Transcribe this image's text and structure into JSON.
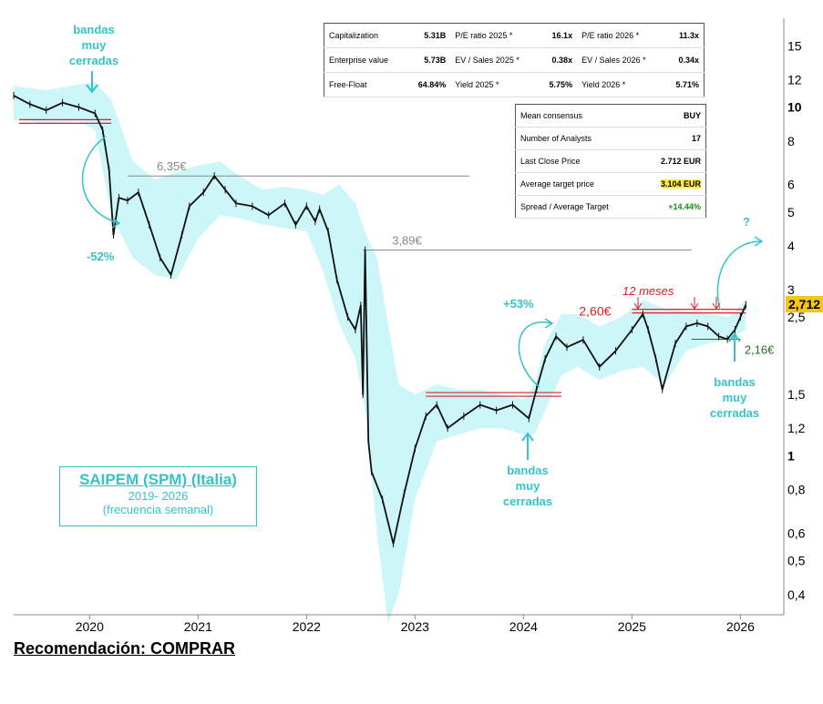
{
  "chart_data": {
    "type": "line",
    "title": "SAIPEM (SPM) (Italia)",
    "subtitle_years": "2019- 2026",
    "subtitle_freq": "(frecuencia semanal)",
    "y_scale": "log",
    "ylim": [
      0.35,
      18
    ],
    "xlim": [
      2019.3,
      2026.4
    ],
    "y_ticks": [
      {
        "v": 15,
        "label": "15",
        "bold": false
      },
      {
        "v": 12,
        "label": "12",
        "bold": false
      },
      {
        "v": 10,
        "label": "10",
        "bold": true
      },
      {
        "v": 8,
        "label": "8",
        "bold": false
      },
      {
        "v": 6,
        "label": "6",
        "bold": false
      },
      {
        "v": 5,
        "label": "5",
        "bold": false
      },
      {
        "v": 4,
        "label": "4",
        "bold": false
      },
      {
        "v": 3,
        "label": "3",
        "bold": false
      },
      {
        "v": 2.5,
        "label": "2,5",
        "bold": false
      },
      {
        "v": 1.5,
        "label": "1,5",
        "bold": false
      },
      {
        "v": 1.2,
        "label": "1,2",
        "bold": false
      },
      {
        "v": 1,
        "label": "1",
        "bold": true
      },
      {
        "v": 0.8,
        "label": "0,8",
        "bold": false
      },
      {
        "v": 0.6,
        "label": "0,6",
        "bold": false
      },
      {
        "v": 0.5,
        "label": "0,5",
        "bold": false
      },
      {
        "v": 0.4,
        "label": "0,4",
        "bold": false
      }
    ],
    "x_ticks": [
      {
        "v": 2020,
        "label": "2020"
      },
      {
        "v": 2021,
        "label": "2021"
      },
      {
        "v": 2022,
        "label": "2022"
      },
      {
        "v": 2023,
        "label": "2023"
      },
      {
        "v": 2024,
        "label": "2024"
      },
      {
        "v": 2025,
        "label": "2025"
      },
      {
        "v": 2026,
        "label": "2026"
      }
    ],
    "price_series": [
      [
        2019.3,
        10.8
      ],
      [
        2019.45,
        10.2
      ],
      [
        2019.6,
        9.8
      ],
      [
        2019.75,
        10.3
      ],
      [
        2019.9,
        10.0
      ],
      [
        2020.05,
        9.6
      ],
      [
        2020.12,
        8.6
      ],
      [
        2020.18,
        6.6
      ],
      [
        2020.22,
        4.3
      ],
      [
        2020.27,
        5.5
      ],
      [
        2020.35,
        5.4
      ],
      [
        2020.45,
        5.7
      ],
      [
        2020.55,
        4.6
      ],
      [
        2020.65,
        3.7
      ],
      [
        2020.75,
        3.3
      ],
      [
        2020.85,
        4.3
      ],
      [
        2020.92,
        5.2
      ],
      [
        2021.05,
        5.7
      ],
      [
        2021.15,
        6.35
      ],
      [
        2021.25,
        5.8
      ],
      [
        2021.35,
        5.3
      ],
      [
        2021.5,
        5.2
      ],
      [
        2021.65,
        4.9
      ],
      [
        2021.8,
        5.3
      ],
      [
        2021.9,
        4.6
      ],
      [
        2022.0,
        5.2
      ],
      [
        2022.08,
        4.7
      ],
      [
        2022.12,
        5.1
      ],
      [
        2022.2,
        4.4
      ],
      [
        2022.28,
        3.2
      ],
      [
        2022.38,
        2.5
      ],
      [
        2022.45,
        2.3
      ],
      [
        2022.5,
        2.7
      ],
      [
        2022.52,
        1.5
      ],
      [
        2022.54,
        3.89
      ],
      [
        2022.57,
        1.1
      ],
      [
        2022.6,
        0.9
      ],
      [
        2022.7,
        0.75
      ],
      [
        2022.8,
        0.56
      ],
      [
        2022.9,
        0.78
      ],
      [
        2023.0,
        1.05
      ],
      [
        2023.1,
        1.3
      ],
      [
        2023.2,
        1.4
      ],
      [
        2023.3,
        1.2
      ],
      [
        2023.45,
        1.3
      ],
      [
        2023.6,
        1.4
      ],
      [
        2023.75,
        1.35
      ],
      [
        2023.9,
        1.4
      ],
      [
        2024.05,
        1.28
      ],
      [
        2024.12,
        1.55
      ],
      [
        2024.2,
        1.9
      ],
      [
        2024.3,
        2.2
      ],
      [
        2024.4,
        2.05
      ],
      [
        2024.55,
        2.15
      ],
      [
        2024.7,
        1.8
      ],
      [
        2024.85,
        2.0
      ],
      [
        2025.0,
        2.3
      ],
      [
        2025.1,
        2.55
      ],
      [
        2025.15,
        2.3
      ],
      [
        2025.22,
        1.9
      ],
      [
        2025.28,
        1.55
      ],
      [
        2025.4,
        2.1
      ],
      [
        2025.5,
        2.35
      ],
      [
        2025.6,
        2.4
      ],
      [
        2025.7,
        2.35
      ],
      [
        2025.8,
        2.2
      ],
      [
        2025.88,
        2.16
      ],
      [
        2025.95,
        2.3
      ],
      [
        2026.0,
        2.5
      ],
      [
        2026.05,
        2.712
      ]
    ],
    "band_upper": [
      [
        2019.3,
        11.5
      ],
      [
        2019.6,
        11.2
      ],
      [
        2019.9,
        11.6
      ],
      [
        2020.05,
        11.8
      ],
      [
        2020.2,
        10.5
      ],
      [
        2020.4,
        7.0
      ],
      [
        2020.6,
        6.2
      ],
      [
        2020.8,
        6.5
      ],
      [
        2021.0,
        6.8
      ],
      [
        2021.2,
        7.0
      ],
      [
        2021.4,
        6.3
      ],
      [
        2021.6,
        5.8
      ],
      [
        2021.8,
        5.9
      ],
      [
        2022.0,
        5.8
      ],
      [
        2022.15,
        5.6
      ],
      [
        2022.3,
        6.0
      ],
      [
        2022.45,
        5.3
      ],
      [
        2022.55,
        4.3
      ],
      [
        2022.65,
        3.7
      ],
      [
        2022.75,
        2.4
      ],
      [
        2022.85,
        1.6
      ],
      [
        2023.0,
        1.5
      ],
      [
        2023.2,
        1.6
      ],
      [
        2023.4,
        1.55
      ],
      [
        2023.6,
        1.55
      ],
      [
        2023.8,
        1.5
      ],
      [
        2024.0,
        1.45
      ],
      [
        2024.1,
        1.6
      ],
      [
        2024.2,
        2.1
      ],
      [
        2024.35,
        2.55
      ],
      [
        2024.5,
        2.55
      ],
      [
        2024.7,
        2.35
      ],
      [
        2024.9,
        2.5
      ],
      [
        2025.1,
        2.8
      ],
      [
        2025.3,
        2.65
      ],
      [
        2025.5,
        2.6
      ],
      [
        2025.7,
        2.55
      ],
      [
        2025.9,
        2.5
      ],
      [
        2026.05,
        2.8
      ]
    ],
    "band_lower": [
      [
        2019.3,
        9.2
      ],
      [
        2019.6,
        9.0
      ],
      [
        2019.9,
        9.1
      ],
      [
        2020.05,
        8.6
      ],
      [
        2020.2,
        4.9
      ],
      [
        2020.4,
        3.7
      ],
      [
        2020.6,
        3.3
      ],
      [
        2020.8,
        3.2
      ],
      [
        2021.0,
        4.2
      ],
      [
        2021.2,
        4.9
      ],
      [
        2021.4,
        4.8
      ],
      [
        2021.6,
        4.6
      ],
      [
        2021.8,
        4.5
      ],
      [
        2022.0,
        4.4
      ],
      [
        2022.15,
        3.4
      ],
      [
        2022.3,
        2.4
      ],
      [
        2022.45,
        1.9
      ],
      [
        2022.55,
        1.3
      ],
      [
        2022.65,
        0.6
      ],
      [
        2022.75,
        0.33
      ],
      [
        2022.85,
        0.4
      ],
      [
        2023.0,
        0.75
      ],
      [
        2023.2,
        1.1
      ],
      [
        2023.4,
        1.15
      ],
      [
        2023.6,
        1.2
      ],
      [
        2023.8,
        1.2
      ],
      [
        2024.0,
        1.15
      ],
      [
        2024.1,
        1.15
      ],
      [
        2024.2,
        1.35
      ],
      [
        2024.35,
        1.7
      ],
      [
        2024.5,
        1.8
      ],
      [
        2024.7,
        1.65
      ],
      [
        2024.9,
        1.75
      ],
      [
        2025.1,
        1.8
      ],
      [
        2025.3,
        1.6
      ],
      [
        2025.5,
        2.0
      ],
      [
        2025.7,
        2.1
      ],
      [
        2025.9,
        2.15
      ],
      [
        2026.05,
        2.3
      ]
    ],
    "reference_lines": [
      {
        "kind": "gray",
        "label": "6,35€",
        "value": 6.35,
        "x_from": 2020.35,
        "x_to": 2023.5
      },
      {
        "kind": "gray",
        "label": "3,89€",
        "value": 3.89,
        "x_from": 2022.52,
        "x_to": 2025.55
      },
      {
        "kind": "red",
        "label": "",
        "value": 9.1,
        "x_from": 2019.35,
        "x_to": 2020.2
      },
      {
        "kind": "red",
        "label": "",
        "value": 1.5,
        "x_from": 2023.1,
        "x_to": 2024.35
      },
      {
        "kind": "red",
        "label": "2,60€",
        "value": 2.6,
        "x_from": 2025.0,
        "x_to": 2026.05
      },
      {
        "kind": "green",
        "label": "2,16€",
        "value": 2.16,
        "x_from": 2025.55,
        "x_to": 2026.0
      }
    ],
    "annotations": {
      "bandas_1": [
        "bandas",
        "muy",
        "cerradas"
      ],
      "bandas_2": [
        "bandas",
        "muy",
        "cerradas"
      ],
      "bandas_3": [
        "bandas",
        "muy",
        "cerradas"
      ],
      "drop_pct": "-52%",
      "rise_pct": "+53%",
      "question": "?",
      "doce_meses": "12 meses"
    },
    "last_price_label": "2,712"
  },
  "table1": {
    "rows": [
      [
        "Capitalization",
        "5.31B",
        "P/E ratio 2025 *",
        "16.1x",
        "P/E ratio 2026 *",
        "11.3x"
      ],
      [
        "Enterprise value",
        "5.73B",
        "EV / Sales 2025 *",
        "0.38x",
        "EV / Sales 2026 *",
        "0.34x"
      ],
      [
        "Free-Float",
        "64.84%",
        "Yield 2025 *",
        "5.75%",
        "Yield 2026 *",
        "5.71%"
      ]
    ]
  },
  "table2": {
    "rows": [
      [
        "Mean consensus",
        "BUY"
      ],
      [
        "Number of Analysts",
        "17"
      ],
      [
        "Last Close Price",
        "2.712 EUR"
      ],
      [
        "Average target price",
        "3.104 EUR"
      ],
      [
        "Spread / Average Target",
        "+14.44%"
      ]
    ]
  },
  "title_box": {
    "main": "SAIPEM (SPM) (Italia)",
    "sub1": "2019- 2026",
    "sub2": "(frecuencia semanal)"
  },
  "recommendation": "Recomendación: COMPRAR",
  "colors": {
    "band": "#ccf6f7",
    "accent": "#35c3c8",
    "red": "#e11d23",
    "highlight": "#ffeb3b"
  }
}
